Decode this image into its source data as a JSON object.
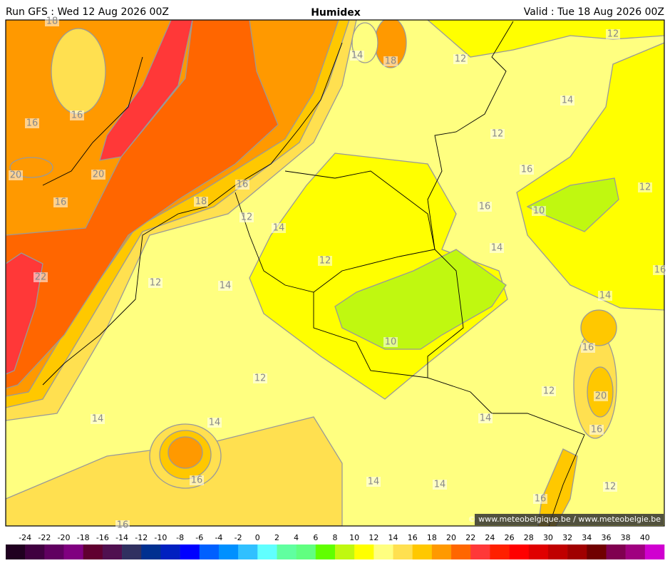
{
  "header": {
    "left": "Run GFS : Wed 12 Aug 2026 00Z",
    "title": "Humidex",
    "right": "Valid : Tue 18 Aug 2026 00Z"
  },
  "contour_labels": [
    18,
    14,
    18,
    12,
    12,
    14,
    16,
    16,
    12,
    20,
    20,
    16,
    16,
    12,
    16,
    18,
    16,
    10,
    12,
    14,
    14,
    12,
    16,
    22,
    12,
    14,
    14,
    10,
    16,
    12,
    12,
    20,
    14,
    14,
    14,
    16,
    16,
    14,
    14,
    12,
    16,
    16
  ],
  "credit": "© www.meteobelgique.be / www.meteobelgie.be",
  "legend": {
    "labels": [
      -24,
      -22,
      -20,
      -18,
      -16,
      -14,
      -12,
      -10,
      -8,
      -6,
      -4,
      -2,
      0,
      2,
      4,
      6,
      8,
      10,
      12,
      14,
      16,
      18,
      20,
      22,
      24,
      26,
      28,
      30,
      32,
      34,
      36,
      38,
      40
    ],
    "colors": [
      "#200020",
      "#400040",
      "#600060",
      "#800080",
      "#600030",
      "#501050",
      "#303060",
      "#003090",
      "#0020c0",
      "#0000ff",
      "#0060ff",
      "#0090ff",
      "#30c0ff",
      "#60ffff",
      "#60ffa0",
      "#60ff80",
      "#60ff00",
      "#c0f810",
      "#ffff00",
      "#ffff80",
      "#ffe050",
      "#ffc800",
      "#ff9900",
      "#ff6600",
      "#ff3838",
      "#ff2000",
      "#ff0000",
      "#e00000",
      "#c00000",
      "#a00000",
      "#700000",
      "#800050",
      "#a00080",
      "#d000d0"
    ]
  }
}
